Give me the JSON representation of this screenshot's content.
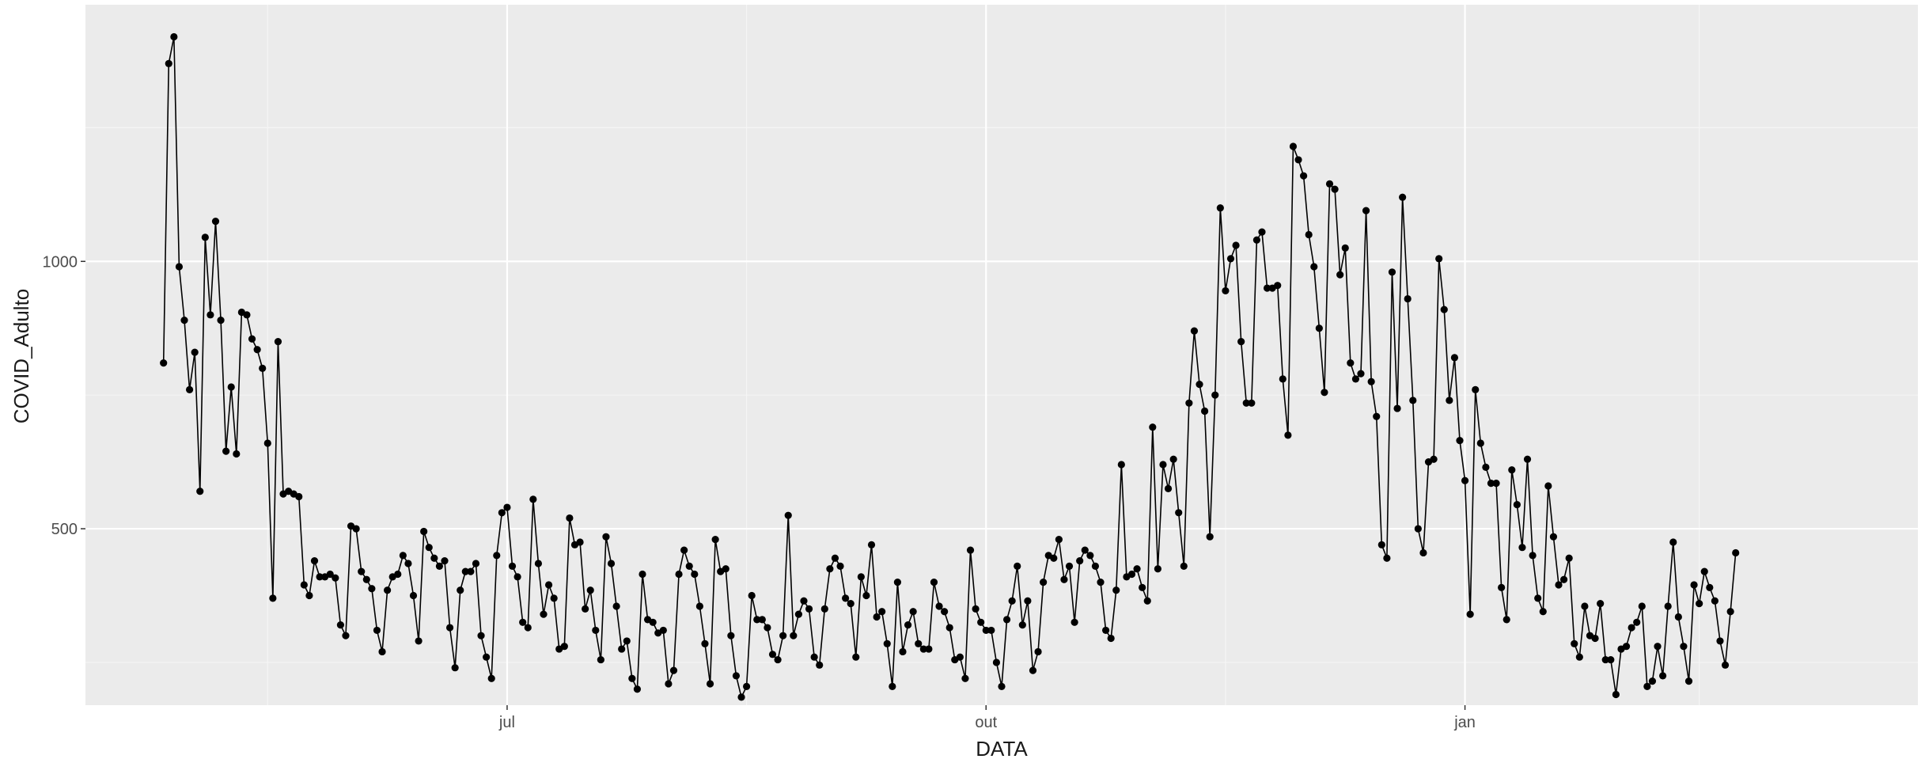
{
  "chart_data": {
    "type": "line",
    "xlabel": "DATA",
    "ylabel": "COVID_Adulto",
    "x_ticks": [
      {
        "date": "2021-07-01",
        "label": "jul"
      },
      {
        "date": "2021-10-01",
        "label": "out"
      },
      {
        "date": "2022-01-01",
        "label": "jan"
      }
    ],
    "x_minor_ticks": [
      "2021-05-16",
      "2021-08-16",
      "2021-11-16",
      "2022-02-15"
    ],
    "y_ticks": [
      {
        "value": 500,
        "label": "500"
      },
      {
        "value": 1000,
        "label": "1000"
      }
    ],
    "y_minor_ticks": [
      250,
      750,
      1250
    ],
    "xlim": [
      "2021-04-11",
      "2022-03-29"
    ],
    "ylim": [
      170,
      1480
    ],
    "grid": true,
    "series": [
      {
        "color": "#000000",
        "start_date": "2021-04-26",
        "values": [
          810,
          1370,
          1420,
          990,
          890,
          760,
          830,
          570,
          1045,
          900,
          1075,
          890,
          645,
          765,
          640,
          905,
          900,
          855,
          835,
          800,
          660,
          370,
          850,
          565,
          570,
          565,
          560,
          395,
          375,
          440,
          410,
          410,
          415,
          408,
          320,
          300,
          505,
          500,
          420,
          405,
          388,
          310,
          270,
          385,
          410,
          415,
          450,
          435,
          375,
          290,
          495,
          465,
          445,
          430,
          440,
          315,
          240,
          385,
          420,
          420,
          435,
          300,
          260,
          220,
          450,
          530,
          540,
          430,
          410,
          325,
          315,
          555,
          435,
          340,
          395,
          370,
          275,
          280,
          520,
          470,
          475,
          350,
          385,
          310,
          255,
          485,
          435,
          355,
          275,
          290,
          220,
          200,
          415,
          330,
          325,
          305,
          310,
          210,
          235,
          415,
          460,
          430,
          415,
          355,
          285,
          210,
          480,
          420,
          425,
          300,
          225,
          185,
          205,
          375,
          330,
          330,
          315,
          265,
          255,
          300,
          525,
          300,
          340,
          365,
          350,
          260,
          245,
          350,
          425,
          445,
          430,
          370,
          360,
          260,
          410,
          375,
          470,
          335,
          345,
          285,
          205,
          400,
          270,
          320,
          345,
          285,
          275,
          275,
          400,
          355,
          345,
          315,
          255,
          260,
          220,
          460,
          350,
          325,
          310,
          310,
          250,
          205,
          330,
          365,
          430,
          320,
          365,
          235,
          270,
          400,
          450,
          445,
          480,
          405,
          430,
          325,
          440,
          460,
          450,
          430,
          400,
          310,
          295,
          385,
          620,
          410,
          415,
          425,
          390,
          365,
          690,
          425,
          620,
          575,
          630,
          530,
          430,
          735,
          870,
          770,
          720,
          485,
          750,
          1100,
          945,
          1005,
          1030,
          850,
          735,
          735,
          1040,
          1055,
          950,
          950,
          955,
          780,
          675,
          1215,
          1190,
          1160,
          1050,
          990,
          875,
          755,
          1145,
          1135,
          975,
          1025,
          810,
          780,
          790,
          1095,
          775,
          710,
          470,
          445,
          980,
          725,
          1120,
          930,
          740,
          500,
          455,
          625,
          630,
          1005,
          910,
          740,
          820,
          665,
          590,
          340,
          760,
          660,
          615,
          585,
          585,
          390,
          330,
          610,
          545,
          465,
          630,
          450,
          370,
          345,
          580,
          485,
          395,
          405,
          445,
          285,
          260,
          355,
          300,
          295,
          360,
          255,
          255,
          190,
          275,
          280,
          315,
          325,
          355,
          205,
          215,
          280,
          225,
          355,
          475,
          335,
          280,
          215,
          395,
          360,
          420,
          390,
          365,
          290,
          245,
          345,
          455
        ]
      }
    ]
  }
}
